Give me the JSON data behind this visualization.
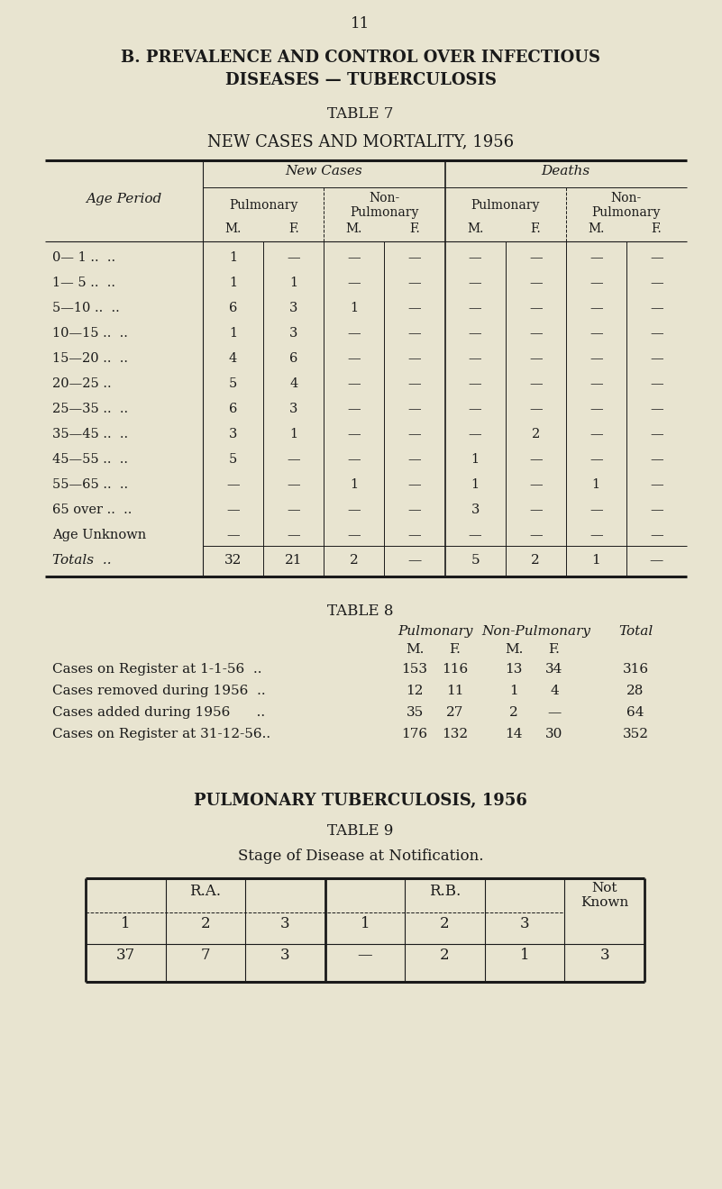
{
  "page_number": "11",
  "title_line1": "B. PREVALENCE AND CONTROL OVER INFECTIOUS",
  "title_line2": "DISEASES — TUBERCULOSIS",
  "table7_title": "TABLE 7",
  "table7_subtitle": "NEW CASES AND MORTALITY, 1956",
  "bg_color": "#e8e4d0",
  "text_color": "#1a1a1a",
  "table7_age_periods": [
    "0— 1 ..  ..",
    "1— 5 ..  ..",
    "5—10 ..  ..",
    "10—15 ..  ..",
    "15—20 ..  ..",
    "20—25 ..",
    "25—35 ..  ..",
    "35—45 ..  ..",
    "45—55 ..  ..",
    "55—65 ..  ..",
    "65 over ..  ..",
    "Age Unknown"
  ],
  "table7_data": [
    [
      "1",
      "—",
      "—",
      "—",
      "—",
      "—",
      "—",
      "—"
    ],
    [
      "1",
      "1",
      "—",
      "—",
      "—",
      "—",
      "—",
      "—"
    ],
    [
      "6",
      "3",
      "1",
      "—",
      "—",
      "—",
      "—",
      "—"
    ],
    [
      "1",
      "3",
      "—",
      "—",
      "—",
      "—",
      "—",
      "—"
    ],
    [
      "4",
      "6",
      "—",
      "—",
      "—",
      "—",
      "—",
      "—"
    ],
    [
      "5",
      "4",
      "—",
      "—",
      "—",
      "—",
      "—",
      "—"
    ],
    [
      "6",
      "3",
      "—",
      "—",
      "—",
      "—",
      "—",
      "—"
    ],
    [
      "3",
      "1",
      "—",
      "—",
      "—",
      "2",
      "—",
      "—"
    ],
    [
      "5",
      "—",
      "—",
      "—",
      "1",
      "—",
      "—",
      "—"
    ],
    [
      "—",
      "—",
      "1",
      "—",
      "1",
      "—",
      "1",
      "—"
    ],
    [
      "—",
      "—",
      "—",
      "—",
      "3",
      "—",
      "—",
      "—"
    ],
    [
      "—",
      "—",
      "—",
      "—",
      "—",
      "—",
      "—",
      "—"
    ]
  ],
  "table7_totals": [
    "32",
    "21",
    "2",
    "—",
    "5",
    "2",
    "1",
    "—"
  ],
  "table8_title": "TABLE 8",
  "table8_rows": [
    [
      "Cases on Register at 1-1-56  ..",
      "153",
      "116",
      "13",
      "34",
      "316"
    ],
    [
      "Cases removed during 1956  ..",
      "12",
      "11",
      "1",
      "4",
      "28"
    ],
    [
      "Cases added during 1956      ..",
      "35",
      "27",
      "2",
      "—",
      "64"
    ],
    [
      "Cases on Register at 31-12-56..",
      "176",
      "132",
      "14",
      "30",
      "352"
    ]
  ],
  "pulm_title": "PULMONARY TUBERCULOSIS,",
  "pulm_year": " 1956",
  "table9_title": "TABLE 9",
  "table9_subtitle": "Stage of Disease at Notification.",
  "table9_ra_header": "R.A.",
  "table9_rb_header": "R.B.",
  "table9_sub_cols": [
    "1",
    "2",
    "3",
    "1",
    "2",
    "3"
  ],
  "table9_data": [
    "37",
    "7",
    "3",
    "—",
    "2",
    "1",
    "3"
  ]
}
